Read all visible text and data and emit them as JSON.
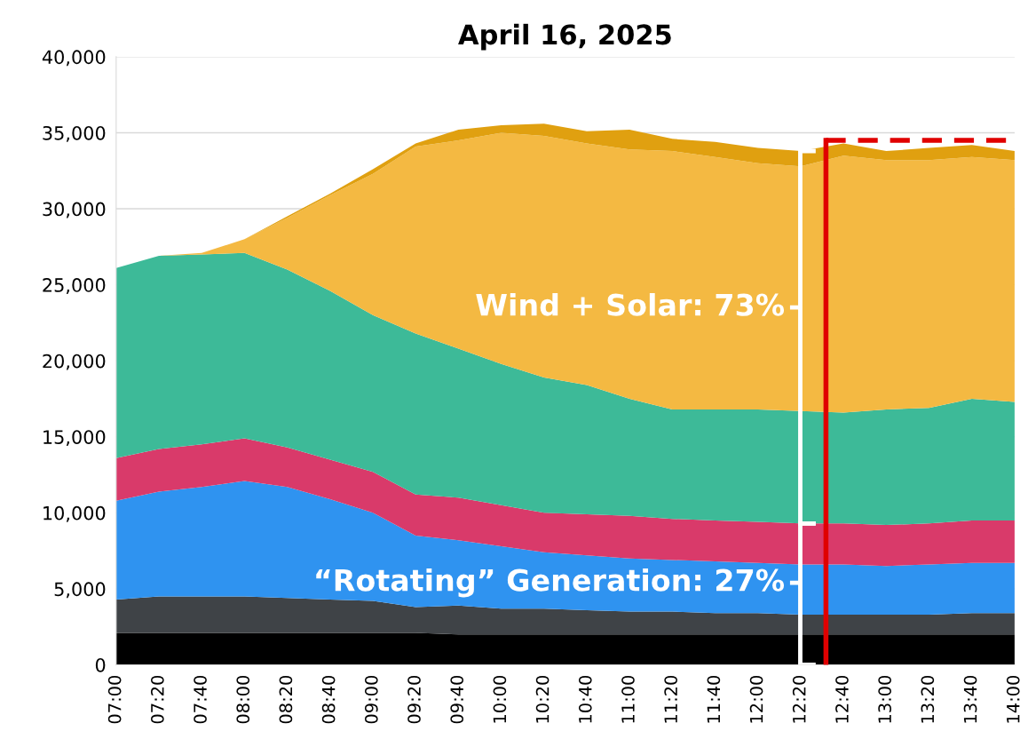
{
  "chart_data": {
    "type": "area",
    "stacked": true,
    "title": "April 16, 2025",
    "x": [
      7.0,
      7.3333,
      7.6667,
      8.0,
      8.3333,
      8.6667,
      9.0,
      9.3333,
      9.6667,
      10.0,
      10.3333,
      10.6667,
      11.0,
      11.3333,
      11.6667,
      12.0,
      12.3333,
      12.6667,
      13.0,
      13.3333,
      13.6667,
      14.0
    ],
    "series": [
      {
        "color": "#000000",
        "values": [
          2100,
          2100,
          2100,
          2100,
          2100,
          2100,
          2100,
          2100,
          2000,
          2000,
          2000,
          2000,
          2000,
          2000,
          2000,
          2000,
          2000,
          2000,
          2000,
          2000,
          2000,
          2000
        ]
      },
      {
        "color": "#3f4347",
        "values": [
          2200,
          2400,
          2400,
          2400,
          2300,
          2200,
          2100,
          1700,
          1900,
          1700,
          1700,
          1600,
          1500,
          1500,
          1400,
          1400,
          1300,
          1300,
          1300,
          1300,
          1400,
          1400
        ]
      },
      {
        "color": "#2f93f0",
        "values": [
          6500,
          6900,
          7200,
          7600,
          7300,
          6600,
          5800,
          4700,
          4300,
          4100,
          3700,
          3600,
          3500,
          3400,
          3400,
          3300,
          3300,
          3300,
          3200,
          3300,
          3300,
          3300
        ]
      },
      {
        "color": "#d93a6a",
        "values": [
          2800,
          2800,
          2800,
          2800,
          2600,
          2600,
          2700,
          2700,
          2800,
          2700,
          2600,
          2700,
          2800,
          2700,
          2700,
          2700,
          2700,
          2700,
          2700,
          2700,
          2800,
          2800
        ]
      },
      {
        "color": "#3dba98",
        "values": [
          12500,
          12700,
          12500,
          12200,
          11700,
          11100,
          10300,
          10600,
          9800,
          9300,
          8900,
          8500,
          7700,
          7200,
          7300,
          7400,
          7400,
          7300,
          7600,
          7600,
          8000,
          7800
        ]
      },
      {
        "color": "#f4b942",
        "values": [
          0,
          0,
          100,
          900,
          3400,
          6300,
          9300,
          12300,
          13700,
          15200,
          15900,
          15900,
          16400,
          17000,
          16600,
          16200,
          16100,
          16900,
          16400,
          16300,
          15900,
          15900
        ]
      },
      {
        "color": "#e0a010",
        "values": [
          0,
          0,
          0,
          0,
          100,
          100,
          300,
          200,
          700,
          500,
          800,
          800,
          1300,
          800,
          1000,
          1000,
          1000,
          800,
          600,
          800,
          800,
          600
        ]
      },
      {
        "type": "line",
        "color": "#e00000",
        "line_style": "dashed",
        "x": [
          12.53,
          14.0
        ],
        "values": [
          34500,
          34500
        ]
      }
    ],
    "xlim": [
      7.0,
      14.0
    ],
    "xticks": [
      {
        "value": 7.0,
        "label": "07:00"
      },
      {
        "value": 7.3333,
        "label": "07:20"
      },
      {
        "value": 7.6667,
        "label": "07:40"
      },
      {
        "value": 8.0,
        "label": "08:00"
      },
      {
        "value": 8.3333,
        "label": "08:20"
      },
      {
        "value": 8.6667,
        "label": "08:40"
      },
      {
        "value": 9.0,
        "label": "09:00"
      },
      {
        "value": 9.3333,
        "label": "09:20"
      },
      {
        "value": 9.6667,
        "label": "09:40"
      },
      {
        "value": 10.0,
        "label": "10:00"
      },
      {
        "value": 10.3333,
        "label": "10:20"
      },
      {
        "value": 10.6667,
        "label": "10:40"
      },
      {
        "value": 11.0,
        "label": "11:00"
      },
      {
        "value": 11.3333,
        "label": "11:20"
      },
      {
        "value": 11.6667,
        "label": "11:40"
      },
      {
        "value": 12.0,
        "label": "12:00"
      },
      {
        "value": 12.3333,
        "label": "12:20"
      },
      {
        "value": 12.6667,
        "label": "12:40"
      },
      {
        "value": 13.0,
        "label": "13:00"
      },
      {
        "value": 13.3333,
        "label": "13:20"
      },
      {
        "value": 13.6667,
        "label": "13:40"
      },
      {
        "value": 14.0,
        "label": "14:00"
      }
    ],
    "ylim": [
      0,
      40000
    ],
    "yticks": [
      0,
      {
        "value": 5000,
        "label": "5,000"
      },
      {
        "value": 10000,
        "label": "10,000"
      },
      {
        "value": 15000,
        "label": "15,000"
      },
      {
        "value": 20000,
        "label": "20,000"
      },
      {
        "value": 25000,
        "label": "25,000"
      },
      {
        "value": 30000,
        "label": "30,000"
      },
      {
        "value": 35000,
        "label": "35,000"
      },
      {
        "value": 40000,
        "label": "40,000"
      }
    ],
    "grid": "y",
    "ref_lines": [
      {
        "axis": "x",
        "value": 12.53,
        "color": "#e00000"
      }
    ],
    "annotations": [
      "Wind + Solar: 73%",
      "“Rotating” Generation: 27%"
    ]
  }
}
